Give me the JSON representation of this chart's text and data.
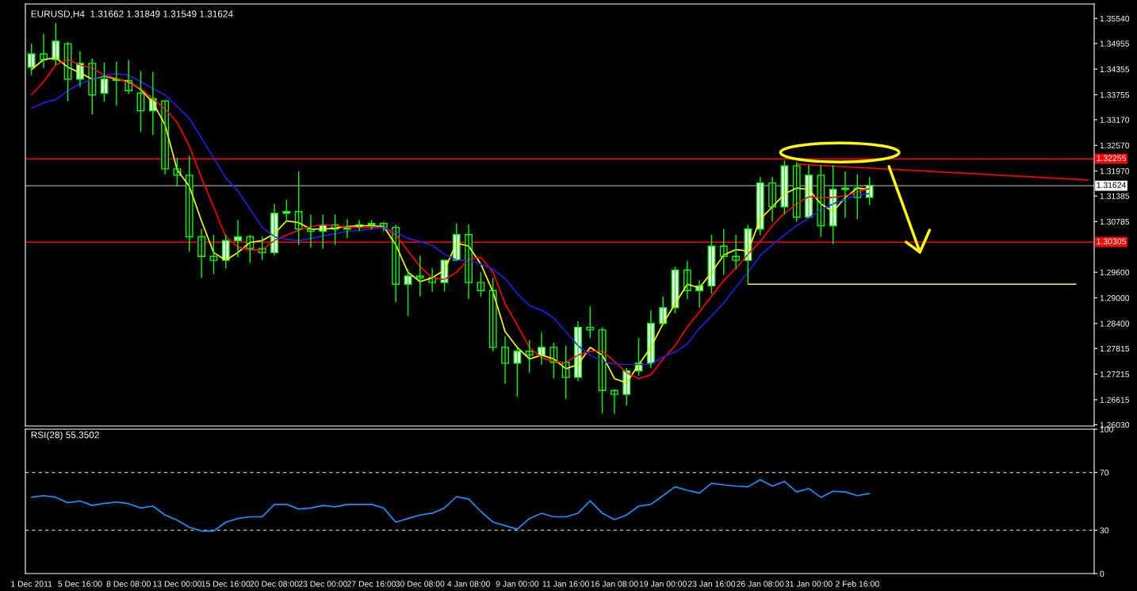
{
  "chart_data": [
    {
      "type": "candlestick",
      "title": "EURUSD,H4  1.31662 1.31849 1.31549 1.31624",
      "series": [
        {
          "type": "candlestick",
          "color": "#00ff00",
          "ohlc": [
            [
              1.344,
              1.3495,
              1.3422,
              1.3471
            ],
            [
              1.3471,
              1.3518,
              1.3438,
              1.3458
            ],
            [
              1.3458,
              1.3543,
              1.3444,
              1.3501
            ],
            [
              1.3495,
              1.3499,
              1.3361,
              1.3412
            ],
            [
              1.3412,
              1.3477,
              1.3394,
              1.3449
            ],
            [
              1.3449,
              1.346,
              1.3329,
              1.3375
            ],
            [
              1.3379,
              1.3451,
              1.3359,
              1.3412
            ],
            [
              1.3412,
              1.3453,
              1.335,
              1.3409
            ],
            [
              1.3409,
              1.3457,
              1.3377,
              1.3385
            ],
            [
              1.3379,
              1.3431,
              1.3289,
              1.3338
            ],
            [
              1.3338,
              1.3429,
              1.3281,
              1.3366
            ],
            [
              1.3361,
              1.3361,
              1.3189,
              1.3202
            ],
            [
              1.3202,
              1.3228,
              1.3161,
              1.3187
            ],
            [
              1.3187,
              1.3233,
              1.3008,
              1.3043
            ],
            [
              1.3043,
              1.3061,
              1.2947,
              1.2997
            ],
            [
              1.2997,
              1.3048,
              1.2956,
              1.2988
            ],
            [
              1.2988,
              1.3048,
              1.2969,
              1.3034
            ],
            [
              1.3034,
              1.3082,
              1.2995,
              1.3043
            ],
            [
              1.3043,
              1.3048,
              1.2982,
              1.3015
            ],
            [
              1.3015,
              1.3043,
              1.2989,
              1.3006
            ],
            [
              1.3006,
              1.3119,
              1.2999,
              1.3098
            ],
            [
              1.3098,
              1.313,
              1.3078,
              1.3102
            ],
            [
              1.3102,
              1.3196,
              1.3024,
              1.3061
            ],
            [
              1.3061,
              1.3095,
              1.3017,
              1.3056
            ],
            [
              1.3056,
              1.3095,
              1.3015,
              1.3071
            ],
            [
              1.3071,
              1.3095,
              1.3024,
              1.3061
            ],
            [
              1.3061,
              1.3084,
              1.3039,
              1.3065
            ],
            [
              1.3065,
              1.3082,
              1.3056,
              1.3071
            ],
            [
              1.3071,
              1.3082,
              1.306,
              1.3074
            ],
            [
              1.3074,
              1.3078,
              1.3056,
              1.3065
            ],
            [
              1.3065,
              1.3071,
              1.289,
              1.2932
            ],
            [
              1.2932,
              1.2967,
              1.2858,
              1.2951
            ],
            [
              1.2951,
              1.2999,
              1.2903,
              1.2947
            ],
            [
              1.2947,
              1.2969,
              1.2915,
              1.2936
            ],
            [
              1.2936,
              1.2989,
              1.2915,
              1.2988
            ],
            [
              1.2988,
              1.3074,
              1.2986,
              1.3048
            ],
            [
              1.3048,
              1.3072,
              1.2897,
              1.2936
            ],
            [
              1.2936,
              1.296,
              1.2903,
              1.2917
            ],
            [
              1.2917,
              1.2947,
              1.2775,
              1.2784
            ],
            [
              1.2784,
              1.281,
              1.2699,
              1.2747
            ],
            [
              1.2747,
              1.2782,
              1.2668,
              1.2775
            ],
            [
              1.2775,
              1.2801,
              1.2725,
              1.2766
            ],
            [
              1.2766,
              1.2819,
              1.2744,
              1.2784
            ],
            [
              1.2784,
              1.2795,
              1.2712,
              1.2749
            ],
            [
              1.2749,
              1.2788,
              1.2664,
              1.2714
            ],
            [
              1.2714,
              1.2845,
              1.2705,
              1.2831
            ],
            [
              1.2831,
              1.288,
              1.2806,
              1.2825
            ],
            [
              1.2825,
              1.2831,
              1.2629,
              1.2683
            ],
            [
              1.2683,
              1.2686,
              1.2629,
              1.2674
            ],
            [
              1.2674,
              1.2736,
              1.2648,
              1.2729
            ],
            [
              1.2729,
              1.2806,
              1.2718,
              1.2747
            ],
            [
              1.2747,
              1.2871,
              1.2736,
              1.284
            ],
            [
              1.284,
              1.2903,
              1.2836,
              1.2877
            ],
            [
              1.2877,
              1.2973,
              1.2864,
              1.2965
            ],
            [
              1.2965,
              1.2986,
              1.2897,
              1.2917
            ],
            [
              1.2917,
              1.2941,
              1.2877,
              1.2928
            ],
            [
              1.2928,
              1.3048,
              1.291,
              1.3021
            ],
            [
              1.3021,
              1.3061,
              1.2954,
              1.2997
            ],
            [
              1.2997,
              1.3048,
              1.2967,
              1.2988
            ],
            [
              1.2988,
              1.3071,
              1.2934,
              1.3061
            ],
            [
              1.3061,
              1.3183,
              1.3047,
              1.3169
            ],
            [
              1.3169,
              1.3183,
              1.3078,
              1.3113
            ],
            [
              1.3113,
              1.3222,
              1.3095,
              1.3209
            ],
            [
              1.3209,
              1.3218,
              1.3078,
              1.3089
            ],
            [
              1.3089,
              1.3211,
              1.3087,
              1.3187
            ],
            [
              1.3187,
              1.3211,
              1.3043,
              1.3069
            ],
            [
              1.3069,
              1.3211,
              1.3026,
              1.3154
            ],
            [
              1.3154,
              1.3196,
              1.3087,
              1.3157
            ],
            [
              1.3157,
              1.3189,
              1.3084,
              1.3135
            ],
            [
              1.3135,
              1.3183,
              1.3117,
              1.3163
            ],
            null,
            null,
            null,
            null,
            null,
            null,
            null,
            null,
            null,
            null,
            null,
            null,
            null,
            null,
            null,
            null,
            null,
            null
          ]
        },
        {
          "type": "line",
          "color": "#ffff00",
          "values": [
            1.3434,
            1.3458,
            1.3462,
            1.344,
            1.3427,
            1.3412,
            1.3419,
            1.3412,
            1.3406,
            1.3388,
            1.3357,
            1.3305,
            1.32,
            1.3161,
            1.308,
            1.3006,
            1.2988,
            1.3006,
            1.303,
            1.3034,
            1.305,
            1.308,
            1.3076,
            1.3061,
            1.3061,
            1.3063,
            1.3067,
            1.3069,
            1.3069,
            1.3067,
            1.3024,
            1.296,
            1.2938,
            1.2947,
            1.2965,
            1.3028,
            1.3021,
            1.2979,
            1.2914,
            1.2821,
            1.2784,
            1.2757,
            1.2766,
            1.2757,
            1.2734,
            1.2744,
            1.2784,
            1.2766,
            1.2711,
            1.2701,
            1.2744,
            1.2784,
            1.284,
            1.2886,
            1.2932,
            1.2923,
            1.296,
            1.3,
            1.3013,
            1.301,
            1.3084,
            1.3113,
            1.3143,
            1.3157,
            1.3154,
            1.312,
            1.3102,
            1.3135,
            1.3157,
            1.3154,
            null,
            null,
            null,
            null,
            null,
            null,
            null,
            null,
            null,
            null,
            null,
            null,
            null,
            null,
            null,
            null,
            null,
            null
          ]
        },
        {
          "type": "line",
          "color": "#ff0000",
          "values": [
            1.3375,
            1.3406,
            1.3445,
            1.3458,
            1.3445,
            1.3438,
            1.3421,
            1.3414,
            1.3403,
            1.339,
            1.3366,
            1.3342,
            1.3311,
            1.3255,
            1.3181,
            1.3113,
            1.3043,
            1.3019,
            1.3012,
            1.3013,
            1.3034,
            1.3047,
            1.3058,
            1.3067,
            1.3071,
            1.3069,
            1.3065,
            1.3065,
            1.3065,
            1.3065,
            1.3047,
            1.301,
            1.2973,
            1.2947,
            1.2943,
            1.296,
            1.2991,
            1.2995,
            1.296,
            1.2886,
            1.2836,
            1.2784,
            1.276,
            1.2751,
            1.2749,
            1.2766,
            1.2775,
            1.2775,
            1.2751,
            1.2725,
            1.2711,
            1.272,
            1.2757,
            1.2788,
            1.2832,
            1.2867,
            1.2904,
            1.2941,
            1.2969,
            1.3002,
            1.3032,
            1.3069,
            1.3098,
            1.312,
            1.3137,
            1.3135,
            1.3135,
            1.3139,
            1.3148,
            1.3156,
            null,
            null,
            null,
            null,
            null,
            null,
            null,
            null,
            null,
            null,
            null,
            null,
            null,
            null,
            null,
            null,
            null,
            null
          ]
        },
        {
          "type": "line",
          "color": "#2020e0",
          "values": [
            1.3344,
            1.3357,
            1.3364,
            1.3385,
            1.3401,
            1.3412,
            1.3421,
            1.3425,
            1.3421,
            1.3406,
            1.339,
            1.3375,
            1.3348,
            1.332,
            1.3274,
            1.3228,
            1.3181,
            1.315,
            1.3108,
            1.3065,
            1.3043,
            1.3037,
            1.3034,
            1.3039,
            1.3045,
            1.305,
            1.3056,
            1.3058,
            1.3061,
            1.3065,
            1.3054,
            1.3039,
            1.3032,
            1.3023,
            1.3002,
            1.2988,
            1.2988,
            1.2979,
            1.2967,
            1.2945,
            1.291,
            1.2882,
            1.2871,
            1.2853,
            1.2821,
            1.2788,
            1.2766,
            1.2751,
            1.2745,
            1.2744,
            1.2744,
            1.2744,
            1.2762,
            1.2773,
            1.2792,
            1.2829,
            1.2858,
            1.2888,
            1.2925,
            1.296,
            1.2999,
            1.3024,
            1.3047,
            1.3069,
            1.3087,
            1.3106,
            1.312,
            1.3131,
            1.3141,
            1.3144,
            null,
            null,
            null,
            null,
            null,
            null,
            null,
            null,
            null,
            null,
            null,
            null,
            null,
            null,
            null,
            null,
            null,
            null
          ]
        },
        {
          "type": "line",
          "color": "#ff0000",
          "values": [
            null,
            null,
            null,
            null,
            null,
            null,
            null,
            null,
            null,
            null,
            null,
            null,
            null,
            null,
            null,
            null,
            null,
            null,
            null,
            null,
            null,
            null,
            null,
            null,
            null,
            null,
            null,
            null,
            null,
            null,
            null,
            null,
            null,
            null,
            null,
            null,
            null,
            null,
            null,
            null,
            null,
            null,
            null,
            null,
            null,
            null,
            null,
            null,
            null,
            null,
            null,
            null,
            null,
            null,
            null,
            null,
            null,
            null,
            null,
            null,
            null,
            null,
            null,
            1.3213,
            null,
            null,
            null,
            null,
            null,
            null,
            null,
            null,
            null,
            null,
            null,
            null,
            null,
            null,
            null,
            null,
            null,
            null,
            null,
            null,
            null,
            null,
            null,
            1.3176
          ]
        },
        {
          "type": "line",
          "color": "#ffff00",
          "values": [
            null,
            null,
            null,
            null,
            null,
            null,
            null,
            null,
            null,
            null,
            null,
            null,
            null,
            null,
            null,
            null,
            null,
            null,
            null,
            null,
            null,
            null,
            null,
            null,
            null,
            null,
            null,
            null,
            null,
            null,
            null,
            null,
            null,
            null,
            null,
            null,
            null,
            null,
            null,
            null,
            null,
            null,
            null,
            null,
            null,
            null,
            null,
            null,
            null,
            null,
            null,
            null,
            null,
            null,
            null,
            null,
            null,
            null,
            null,
            1.2932,
            null,
            null,
            null,
            null,
            null,
            null,
            null,
            null,
            null,
            null,
            null,
            null,
            null,
            null,
            null,
            null,
            null,
            null,
            null,
            null,
            null,
            null,
            null,
            null,
            null,
            null,
            1.2932,
            null
          ]
        }
      ],
      "ylim": [
        1.26,
        1.3588
      ],
      "yticks": [
        {
          "value": 1.3554,
          "label": "1.35540"
        },
        1.34955,
        1.34355,
        1.33755,
        {
          "value": 1.3317,
          "label": "1.33170"
        },
        {
          "value": 1.3257,
          "label": "1.32570"
        },
        {
          "value": 1.3197,
          "label": "1.31970"
        },
        1.31385,
        1.30785,
        {
          "value": 1.296,
          "label": "1.29600"
        },
        {
          "value": 1.29,
          "label": "1.29000"
        },
        {
          "value": 1.284,
          "label": "1.28400"
        },
        1.27815,
        1.27215,
        1.26615,
        {
          "value": 1.2603,
          "label": "1.26030"
        }
      ],
      "ref_lines": [
        {
          "axis": "y",
          "value": 1.32255,
          "label": "1.32255",
          "color": "#ff0000"
        },
        {
          "axis": "y",
          "value": 1.31624,
          "label": "1.31624",
          "color": "#a0a0a0"
        },
        {
          "axis": "y",
          "value": 1.30305,
          "label": "1.30305",
          "color": "#ff0000"
        }
      ],
      "tick_labels": "y"
    },
    {
      "type": "line",
      "title": "RSI(28) 55.3502",
      "categories": [
        "1 Dec 2011",
        null,
        null,
        null,
        "5 Dec 16:00",
        null,
        null,
        null,
        "8 Dec 08:00",
        null,
        null,
        null,
        "13 Dec 00:00",
        null,
        null,
        null,
        "15 Dec 16:00",
        null,
        null,
        null,
        "20 Dec 08:00",
        null,
        null,
        null,
        "23 Dec 00:00",
        null,
        null,
        null,
        "27 Dec 16:00",
        null,
        null,
        null,
        "30 Dec 08:00",
        null,
        null,
        null,
        "4 Jan 08:00",
        null,
        null,
        null,
        "9 Jan 00:00",
        null,
        null,
        null,
        "11 Jan 16:00",
        null,
        null,
        null,
        "16 Jan 08:00",
        null,
        null,
        null,
        "19 Jan 00:00",
        null,
        null,
        null,
        "23 Jan 16:00",
        null,
        null,
        null,
        "26 Jan 08:00",
        null,
        null,
        null,
        "31 Jan 00:00",
        null,
        null,
        null,
        "2 Feb 16:00",
        null,
        null,
        null,
        null,
        null,
        null,
        null,
        null,
        null,
        null,
        null,
        null,
        null,
        null,
        null,
        null,
        null,
        null,
        null
      ],
      "series": [
        {
          "color": "#1e90ff",
          "values": [
            52.8,
            54.0,
            52.8,
            49.1,
            50.3,
            47.2,
            48.6,
            49.6,
            48.4,
            45.4,
            46.7,
            40.5,
            36.9,
            32.0,
            29.5,
            29.5,
            35.6,
            38.1,
            39.3,
            39.3,
            47.9,
            47.9,
            44.7,
            45.4,
            47.2,
            46.2,
            47.9,
            47.9,
            47.9,
            45.4,
            35.6,
            38.1,
            40.5,
            41.8,
            45.4,
            53.3,
            51.6,
            43.0,
            35.6,
            33.2,
            30.7,
            38.1,
            41.8,
            39.3,
            39.3,
            41.8,
            50.3,
            41.8,
            37.4,
            40.5,
            46.7,
            47.9,
            54.0,
            60.1,
            57.7,
            55.7,
            62.6,
            61.4,
            60.6,
            60.1,
            65.0,
            60.6,
            63.8,
            56.5,
            58.9,
            52.8,
            57.0,
            56.5,
            54.0,
            55.4,
            null,
            null,
            null,
            null,
            null,
            null,
            null,
            null,
            null,
            null,
            null,
            null,
            null,
            null,
            null,
            null,
            null,
            null
          ]
        }
      ],
      "ylim": [
        0,
        100
      ],
      "yticks": [
        0,
        30,
        70,
        100
      ],
      "ref_lines": [
        {
          "axis": "y",
          "value": 30,
          "color": "#c0c0c0",
          "line_style": "dashed"
        },
        {
          "axis": "y",
          "value": 70,
          "color": "#c0c0c0",
          "line_style": "dashed"
        }
      ]
    }
  ]
}
